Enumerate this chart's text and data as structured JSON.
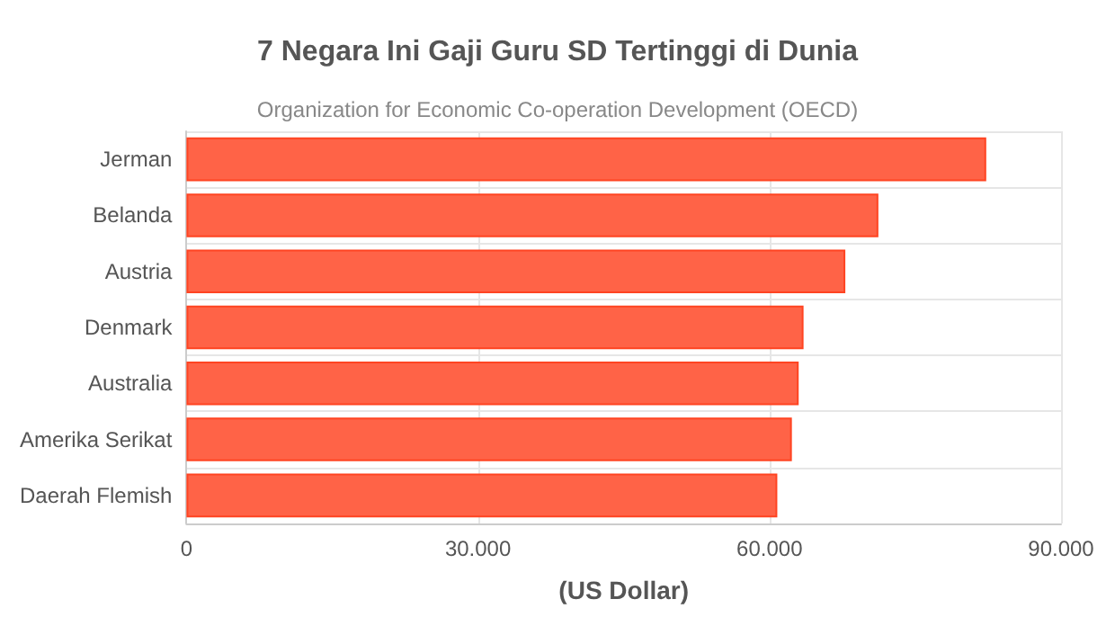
{
  "chart_data": {
    "type": "bar",
    "orientation": "horizontal",
    "title": "7 Negara Ini Gaji Guru SD Tertinggi di Dunia",
    "subtitle": "Organization for Economic Co-operation Development (OECD)",
    "xlabel": "(US Dollar)",
    "categories": [
      "Jerman",
      "Belanda",
      "Austria",
      "Denmark",
      "Australia",
      "Amerika Serikat",
      "Daerah Flemish"
    ],
    "values": [
      82300,
      71200,
      67800,
      63500,
      63000,
      62300,
      60800
    ],
    "color": "#ff6347",
    "xlim": [
      0,
      90000
    ],
    "xticks": [
      {
        "value": 0,
        "label": "0"
      },
      {
        "value": 30000,
        "label": "30.000"
      },
      {
        "value": 60000,
        "label": "60.000"
      },
      {
        "value": 90000,
        "label": "90.000"
      }
    ],
    "grid": true
  }
}
